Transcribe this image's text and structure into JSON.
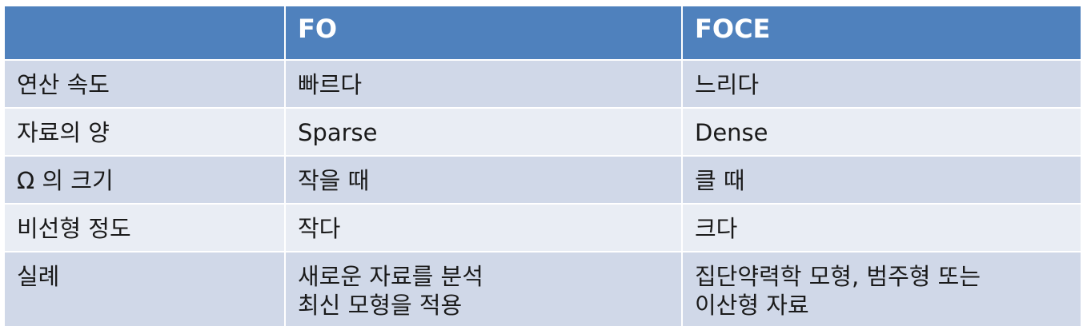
{
  "table": {
    "headers": [
      "",
      "FO",
      "FOCE"
    ],
    "rows": [
      {
        "label": "연산 속도",
        "fo": [
          "빠르다"
        ],
        "foce": [
          "느리다"
        ]
      },
      {
        "label": "자료의 양",
        "fo": [
          "Sparse"
        ],
        "foce": [
          "Dense"
        ]
      },
      {
        "label": "Ω 의 크기",
        "fo": [
          "작을 때"
        ],
        "foce": [
          "클 때"
        ]
      },
      {
        "label": "비선형 정도",
        "fo": [
          "작다"
        ],
        "foce": [
          "크다"
        ]
      },
      {
        "label": "실례",
        "fo": [
          "새로운 자료를 분석",
          "최신 모형을 적용"
        ],
        "foce": [
          "집단약력학 모형, 범주형 또는",
          "이산형 자료"
        ]
      }
    ]
  },
  "colors": {
    "header_bg": "#4f81bd",
    "row_odd": "#d0d8e8",
    "row_even": "#e9edf4"
  }
}
